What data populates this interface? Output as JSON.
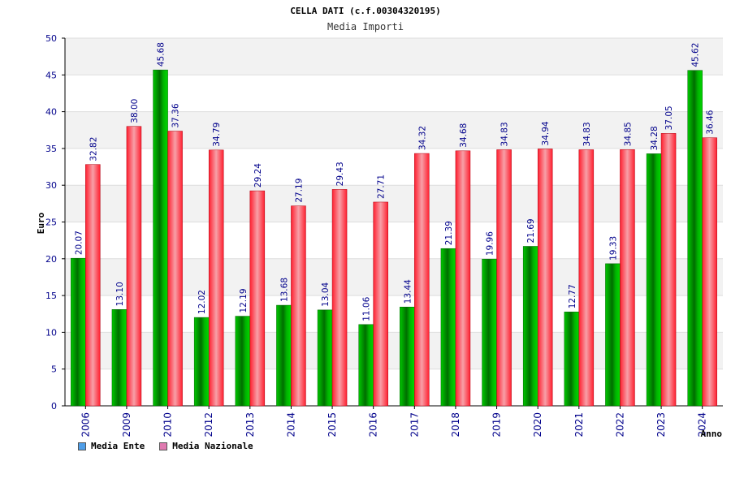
{
  "chart_data": {
    "type": "bar",
    "title": "CELLA DATI (c.f.00304320195)",
    "subtitle": "Media Importi",
    "ylabel": "Euro",
    "xlabel": "Anno",
    "ylim": [
      0,
      50
    ],
    "yticks": [
      "0",
      "5",
      "10",
      "15",
      "20",
      "25",
      "30",
      "35",
      "40",
      "45",
      "50"
    ],
    "categories": [
      "2006",
      "2009",
      "2010",
      "2012",
      "2013",
      "2014",
      "2015",
      "2016",
      "2017",
      "2018",
      "2019",
      "2020",
      "2021",
      "2022",
      "2023",
      "2024"
    ],
    "series": [
      {
        "name": "Media Ente",
        "color": "#00aa00",
        "values": [
          20.07,
          13.1,
          45.68,
          12.02,
          12.19,
          13.68,
          13.04,
          11.06,
          13.44,
          21.39,
          19.96,
          21.69,
          12.77,
          19.33,
          34.28,
          45.62
        ],
        "labels": [
          "20.07",
          "13.10",
          "45.68",
          "12.02",
          "12.19",
          "13.68",
          "13.04",
          "11.06",
          "13.44",
          "21.39",
          "19.96",
          "21.69",
          "12.77",
          "19.33",
          "34.28",
          "45.62"
        ]
      },
      {
        "name": "Media Nazionale",
        "color": "#e8102a",
        "values": [
          32.82,
          38.0,
          37.36,
          34.79,
          29.24,
          27.19,
          29.43,
          27.71,
          34.32,
          34.68,
          34.83,
          34.94,
          34.83,
          34.85,
          37.05,
          36.46
        ],
        "labels": [
          "32.82",
          "38.00",
          "37.36",
          "34.79",
          "29.24",
          "27.19",
          "29.43",
          "27.71",
          "34.32",
          "34.68",
          "34.83",
          "34.94",
          "34.83",
          "34.85",
          "37.05",
          "36.46"
        ]
      }
    ],
    "legend": [
      {
        "label": "Media Ente",
        "color": "#4f9ee8"
      },
      {
        "label": "Media Nazionale",
        "color": "#e07ab0"
      }
    ],
    "legend_position": "bottom-left",
    "grid": true
  }
}
